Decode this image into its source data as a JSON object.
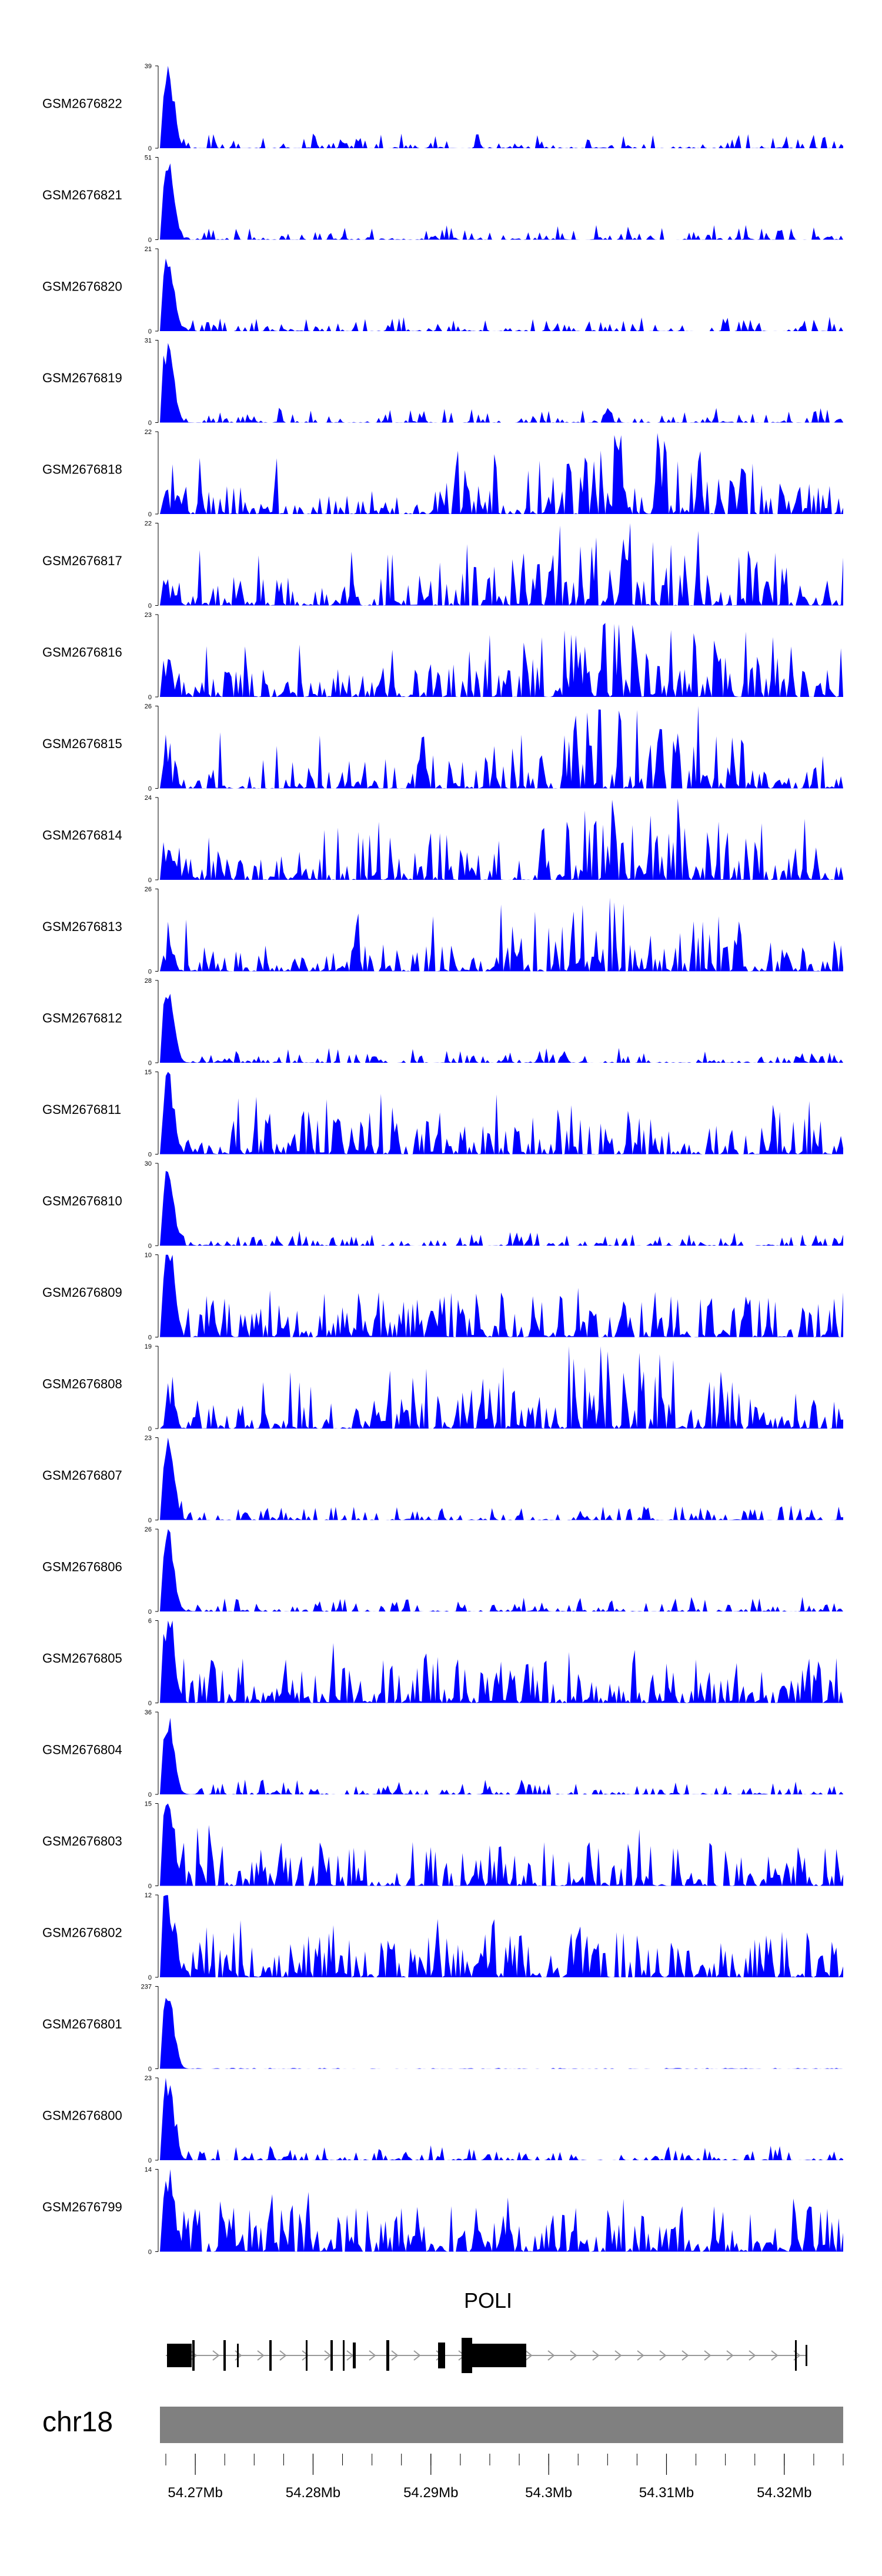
{
  "chart_data": {
    "type": "area",
    "title": "",
    "xlabel": "",
    "ylabel": "",
    "x_range_mb": [
      54.267,
      54.325
    ],
    "gene_label": "POLI",
    "chromosome_label": "chr18",
    "axis_ticks": [
      {
        "value": 54.27,
        "label": "54.27Mb"
      },
      {
        "value": 54.28,
        "label": "54.28Mb"
      },
      {
        "value": 54.29,
        "label": "54.29Mb"
      },
      {
        "value": 54.3,
        "label": "54.3Mb"
      },
      {
        "value": 54.31,
        "label": "54.31Mb"
      },
      {
        "value": 54.32,
        "label": "54.32Mb"
      }
    ],
    "tracks": [
      {
        "name": "GSM2676822",
        "ymax": 39,
        "ymax_label": "39"
      },
      {
        "name": "GSM2676821",
        "ymax": 51,
        "ymax_label": "51"
      },
      {
        "name": "GSM2676820",
        "ymax": 21,
        "ymax_label": "21"
      },
      {
        "name": "GSM2676819",
        "ymax": 31,
        "ymax_label": "31"
      },
      {
        "name": "GSM2676818",
        "ymax": 22,
        "ymax_label": "22"
      },
      {
        "name": "GSM2676817",
        "ymax": 22,
        "ymax_label": "22"
      },
      {
        "name": "GSM2676816",
        "ymax": 23,
        "ymax_label": "23"
      },
      {
        "name": "GSM2676815",
        "ymax": 26,
        "ymax_label": "26"
      },
      {
        "name": "GSM2676814",
        "ymax": 24,
        "ymax_label": "24"
      },
      {
        "name": "GSM2676813",
        "ymax": 26,
        "ymax_label": "26"
      },
      {
        "name": "GSM2676812",
        "ymax": 28,
        "ymax_label": "28"
      },
      {
        "name": "GSM2676811",
        "ymax": 15,
        "ymax_label": "15"
      },
      {
        "name": "GSM2676810",
        "ymax": 30,
        "ymax_label": "30"
      },
      {
        "name": "GSM2676809",
        "ymax": 10,
        "ymax_label": "10"
      },
      {
        "name": "GSM2676808",
        "ymax": 19,
        "ymax_label": "19"
      },
      {
        "name": "GSM2676807",
        "ymax": 23,
        "ymax_label": "23"
      },
      {
        "name": "GSM2676806",
        "ymax": 26,
        "ymax_label": "26"
      },
      {
        "name": "GSM2676805",
        "ymax": 6,
        "ymax_label": "6"
      },
      {
        "name": "GSM2676804",
        "ymax": 36,
        "ymax_label": "36"
      },
      {
        "name": "GSM2676803",
        "ymax": 15,
        "ymax_label": "15"
      },
      {
        "name": "GSM2676802",
        "ymax": 12,
        "ymax_label": "12"
      },
      {
        "name": "GSM2676801",
        "ymax": 237,
        "ymax_label": "237"
      },
      {
        "name": "GSM2676800",
        "ymax": 23,
        "ymax_label": "23"
      },
      {
        "name": "GSM2676799",
        "ymax": 14,
        "ymax_label": "14"
      }
    ],
    "track_zero_label": "0",
    "fill_color": "#0000ff",
    "gene_color": "#000000",
    "chromosome_bar_color": "#808080"
  }
}
